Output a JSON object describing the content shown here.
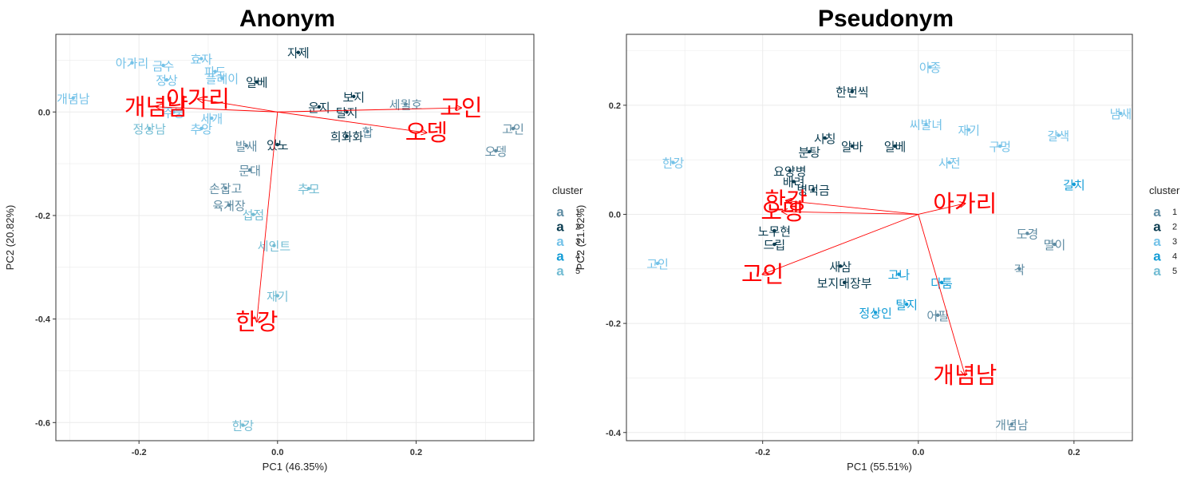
{
  "legend": {
    "title": "cluster",
    "key_glyph": "a",
    "items": [
      {
        "label": "1",
        "color": "#5f8ca3"
      },
      {
        "label": "2",
        "color": "#0b3c50"
      },
      {
        "label": "3",
        "color": "#74c2e8"
      },
      {
        "label": "4",
        "color": "#129cd6"
      },
      {
        "label": "5",
        "color": "#72bcd3"
      }
    ]
  },
  "loading_color": "#ff0000",
  "chart_data": [
    {
      "type": "scatter",
      "title": "Anonym",
      "xlabel": "PC1 (46.35%)",
      "ylabel": "PC2 (20.82%)",
      "xlim": [
        -0.32,
        0.37
      ],
      "ylim": [
        -0.635,
        0.15
      ],
      "xticks": [
        -0.2,
        0.0,
        0.2
      ],
      "yticks": [
        0.0,
        -0.2,
        -0.4,
        -0.6
      ],
      "xtick_labels": [
        "-0.2",
        "0.0",
        "0.2"
      ],
      "ytick_labels": [
        "0.0",
        "-0.2",
        "-0.4",
        "-0.6"
      ],
      "grid": true,
      "points": [
        {
          "label": "아가리",
          "x": -0.21,
          "y": 0.095,
          "cluster": 3
        },
        {
          "label": "개념남",
          "x": -0.295,
          "y": 0.027,
          "cluster": 3
        },
        {
          "label": "정상남",
          "x": -0.185,
          "y": -0.032,
          "cluster": 5
        },
        {
          "label": "고인",
          "x": 0.34,
          "y": -0.032,
          "cluster": 1
        },
        {
          "label": "오뎅",
          "x": 0.315,
          "y": -0.075,
          "cluster": 1
        },
        {
          "label": "자제",
          "x": 0.03,
          "y": 0.115,
          "cluster": 2
        },
        {
          "label": "한강",
          "x": -0.05,
          "y": -0.605,
          "cluster": 5
        },
        {
          "label": "재기",
          "x": 0.0,
          "y": -0.355,
          "cluster": 5
        },
        {
          "label": "세인트",
          "x": -0.005,
          "y": -0.258,
          "cluster": 5
        },
        {
          "label": "추모",
          "x": 0.045,
          "y": -0.148,
          "cluster": 5
        },
        {
          "label": "희화화",
          "x": 0.1,
          "y": -0.047,
          "cluster": 2
        },
        {
          "label": "발새",
          "x": -0.045,
          "y": -0.065,
          "cluster": 1
        },
        {
          "label": "있노",
          "x": 0.0,
          "y": -0.063,
          "cluster": 2
        },
        {
          "label": "손잡고",
          "x": -0.075,
          "y": -0.147,
          "cluster": 1
        },
        {
          "label": "육개장",
          "x": -0.07,
          "y": -0.18,
          "cluster": 1
        },
        {
          "label": "섭점",
          "x": -0.035,
          "y": -0.198,
          "cluster": 5
        },
        {
          "label": "효자",
          "x": -0.11,
          "y": 0.103,
          "cluster": 3
        },
        {
          "label": "금수",
          "x": -0.165,
          "y": 0.09,
          "cluster": 3
        },
        {
          "label": "파도",
          "x": -0.09,
          "y": 0.078,
          "cluster": 3
        },
        {
          "label": "정상",
          "x": -0.16,
          "y": 0.062,
          "cluster": 3
        },
        {
          "label": "일베",
          "x": -0.03,
          "y": 0.058,
          "cluster": 2
        },
        {
          "label": "플레이",
          "x": -0.08,
          "y": 0.065,
          "cluster": 3
        },
        {
          "label": "주둥",
          "x": -0.15,
          "y": 0.0,
          "cluster": 3
        },
        {
          "label": "세개",
          "x": -0.095,
          "y": -0.012,
          "cluster": 3
        },
        {
          "label": "추앙",
          "x": -0.11,
          "y": -0.032,
          "cluster": 3
        },
        {
          "label": "문대",
          "x": -0.04,
          "y": -0.112,
          "cluster": 1
        },
        {
          "label": "보지",
          "x": 0.11,
          "y": 0.03,
          "cluster": 2
        },
        {
          "label": "운지",
          "x": 0.06,
          "y": 0.01,
          "cluster": 2
        },
        {
          "label": "세월호",
          "x": 0.185,
          "y": 0.015,
          "cluster": 1
        },
        {
          "label": "탈지",
          "x": 0.1,
          "y": 0.0,
          "cluster": 2
        },
        {
          "label": "합",
          "x": 0.13,
          "y": -0.038,
          "cluster": 1
        }
      ],
      "loadings": [
        {
          "label": "고인",
          "x": 0.265,
          "y": 0.008
        },
        {
          "label": "오뎅",
          "x": 0.215,
          "y": -0.04
        },
        {
          "label": "한강",
          "x": -0.03,
          "y": -0.405
        },
        {
          "label": "개념남",
          "x": -0.175,
          "y": 0.01
        },
        {
          "label": "아가리",
          "x": -0.115,
          "y": 0.025
        }
      ]
    },
    {
      "type": "scatter",
      "title": "Pseudonym",
      "xlabel": "PC1 (55.51%)",
      "ylabel": "PC2 (21.62%)",
      "xlim": [
        -0.375,
        0.275
      ],
      "ylim": [
        -0.415,
        0.33
      ],
      "xticks": [
        -0.2,
        0.0,
        0.2
      ],
      "yticks": [
        0.2,
        0.0,
        -0.2,
        -0.4
      ],
      "xtick_labels": [
        "-0.2",
        "0.0",
        "0.2"
      ],
      "ytick_labels": [
        "0.2",
        "0.0",
        "-0.2",
        "-0.4"
      ],
      "grid": true,
      "points": [
        {
          "label": "이종",
          "x": 0.015,
          "y": 0.27,
          "cluster": 3
        },
        {
          "label": "한번씩",
          "x": -0.085,
          "y": 0.225,
          "cluster": 2
        },
        {
          "label": "냄새",
          "x": 0.26,
          "y": 0.185,
          "cluster": 3
        },
        {
          "label": "갈색",
          "x": 0.18,
          "y": 0.145,
          "cluster": 3
        },
        {
          "label": "구멍",
          "x": 0.105,
          "y": 0.125,
          "cluster": 3
        },
        {
          "label": "재기",
          "x": 0.065,
          "y": 0.155,
          "cluster": 3
        },
        {
          "label": "씨발녀",
          "x": 0.01,
          "y": 0.165,
          "cluster": 3
        },
        {
          "label": "한강",
          "x": -0.315,
          "y": 0.095,
          "cluster": 3
        },
        {
          "label": "시칭",
          "x": -0.12,
          "y": 0.14,
          "cluster": 2
        },
        {
          "label": "분탕",
          "x": -0.14,
          "y": 0.115,
          "cluster": 2
        },
        {
          "label": "알바",
          "x": -0.085,
          "y": 0.125,
          "cluster": 2
        },
        {
          "label": "일베",
          "x": -0.03,
          "y": 0.125,
          "cluster": 2
        },
        {
          "label": "사전",
          "x": 0.04,
          "y": 0.095,
          "cluster": 3
        },
        {
          "label": "요양병",
          "x": -0.165,
          "y": 0.08,
          "cluster": 2
        },
        {
          "label": "배려",
          "x": -0.16,
          "y": 0.06,
          "cluster": 2
        },
        {
          "label": "병먹금",
          "x": -0.135,
          "y": 0.045,
          "cluster": 2
        },
        {
          "label": "길치",
          "x": 0.2,
          "y": 0.055,
          "cluster": 4
        },
        {
          "label": "노무현",
          "x": -0.185,
          "y": -0.03,
          "cluster": 2
        },
        {
          "label": "드립",
          "x": -0.185,
          "y": -0.055,
          "cluster": 2
        },
        {
          "label": "고인",
          "x": -0.335,
          "y": -0.09,
          "cluster": 3
        },
        {
          "label": "새삼",
          "x": -0.1,
          "y": -0.095,
          "cluster": 2
        },
        {
          "label": "보지대장부",
          "x": -0.095,
          "y": -0.125,
          "cluster": 2
        },
        {
          "label": "고나",
          "x": -0.025,
          "y": -0.11,
          "cluster": 4
        },
        {
          "label": "정상인",
          "x": -0.055,
          "y": -0.18,
          "cluster": 4
        },
        {
          "label": "탈지",
          "x": -0.015,
          "y": -0.165,
          "cluster": 4
        },
        {
          "label": "어필",
          "x": 0.025,
          "y": -0.185,
          "cluster": 1
        },
        {
          "label": "개념남",
          "x": 0.12,
          "y": -0.385,
          "cluster": 1
        },
        {
          "label": "멸이",
          "x": 0.175,
          "y": -0.055,
          "cluster": 1
        },
        {
          "label": "각",
          "x": 0.13,
          "y": -0.1,
          "cluster": 1
        },
        {
          "label": "도경",
          "x": 0.14,
          "y": -0.035,
          "cluster": 1
        },
        {
          "label": "다툼",
          "x": 0.03,
          "y": -0.125,
          "cluster": 4
        }
      ],
      "loadings": [
        {
          "label": "아가리",
          "x": 0.06,
          "y": 0.02
        },
        {
          "label": "개념남",
          "x": 0.06,
          "y": -0.295
        },
        {
          "label": "고인",
          "x": -0.2,
          "y": -0.11
        },
        {
          "label": "오뎅",
          "x": -0.175,
          "y": 0.005
        },
        {
          "label": "한강",
          "x": -0.17,
          "y": 0.025
        }
      ]
    }
  ]
}
